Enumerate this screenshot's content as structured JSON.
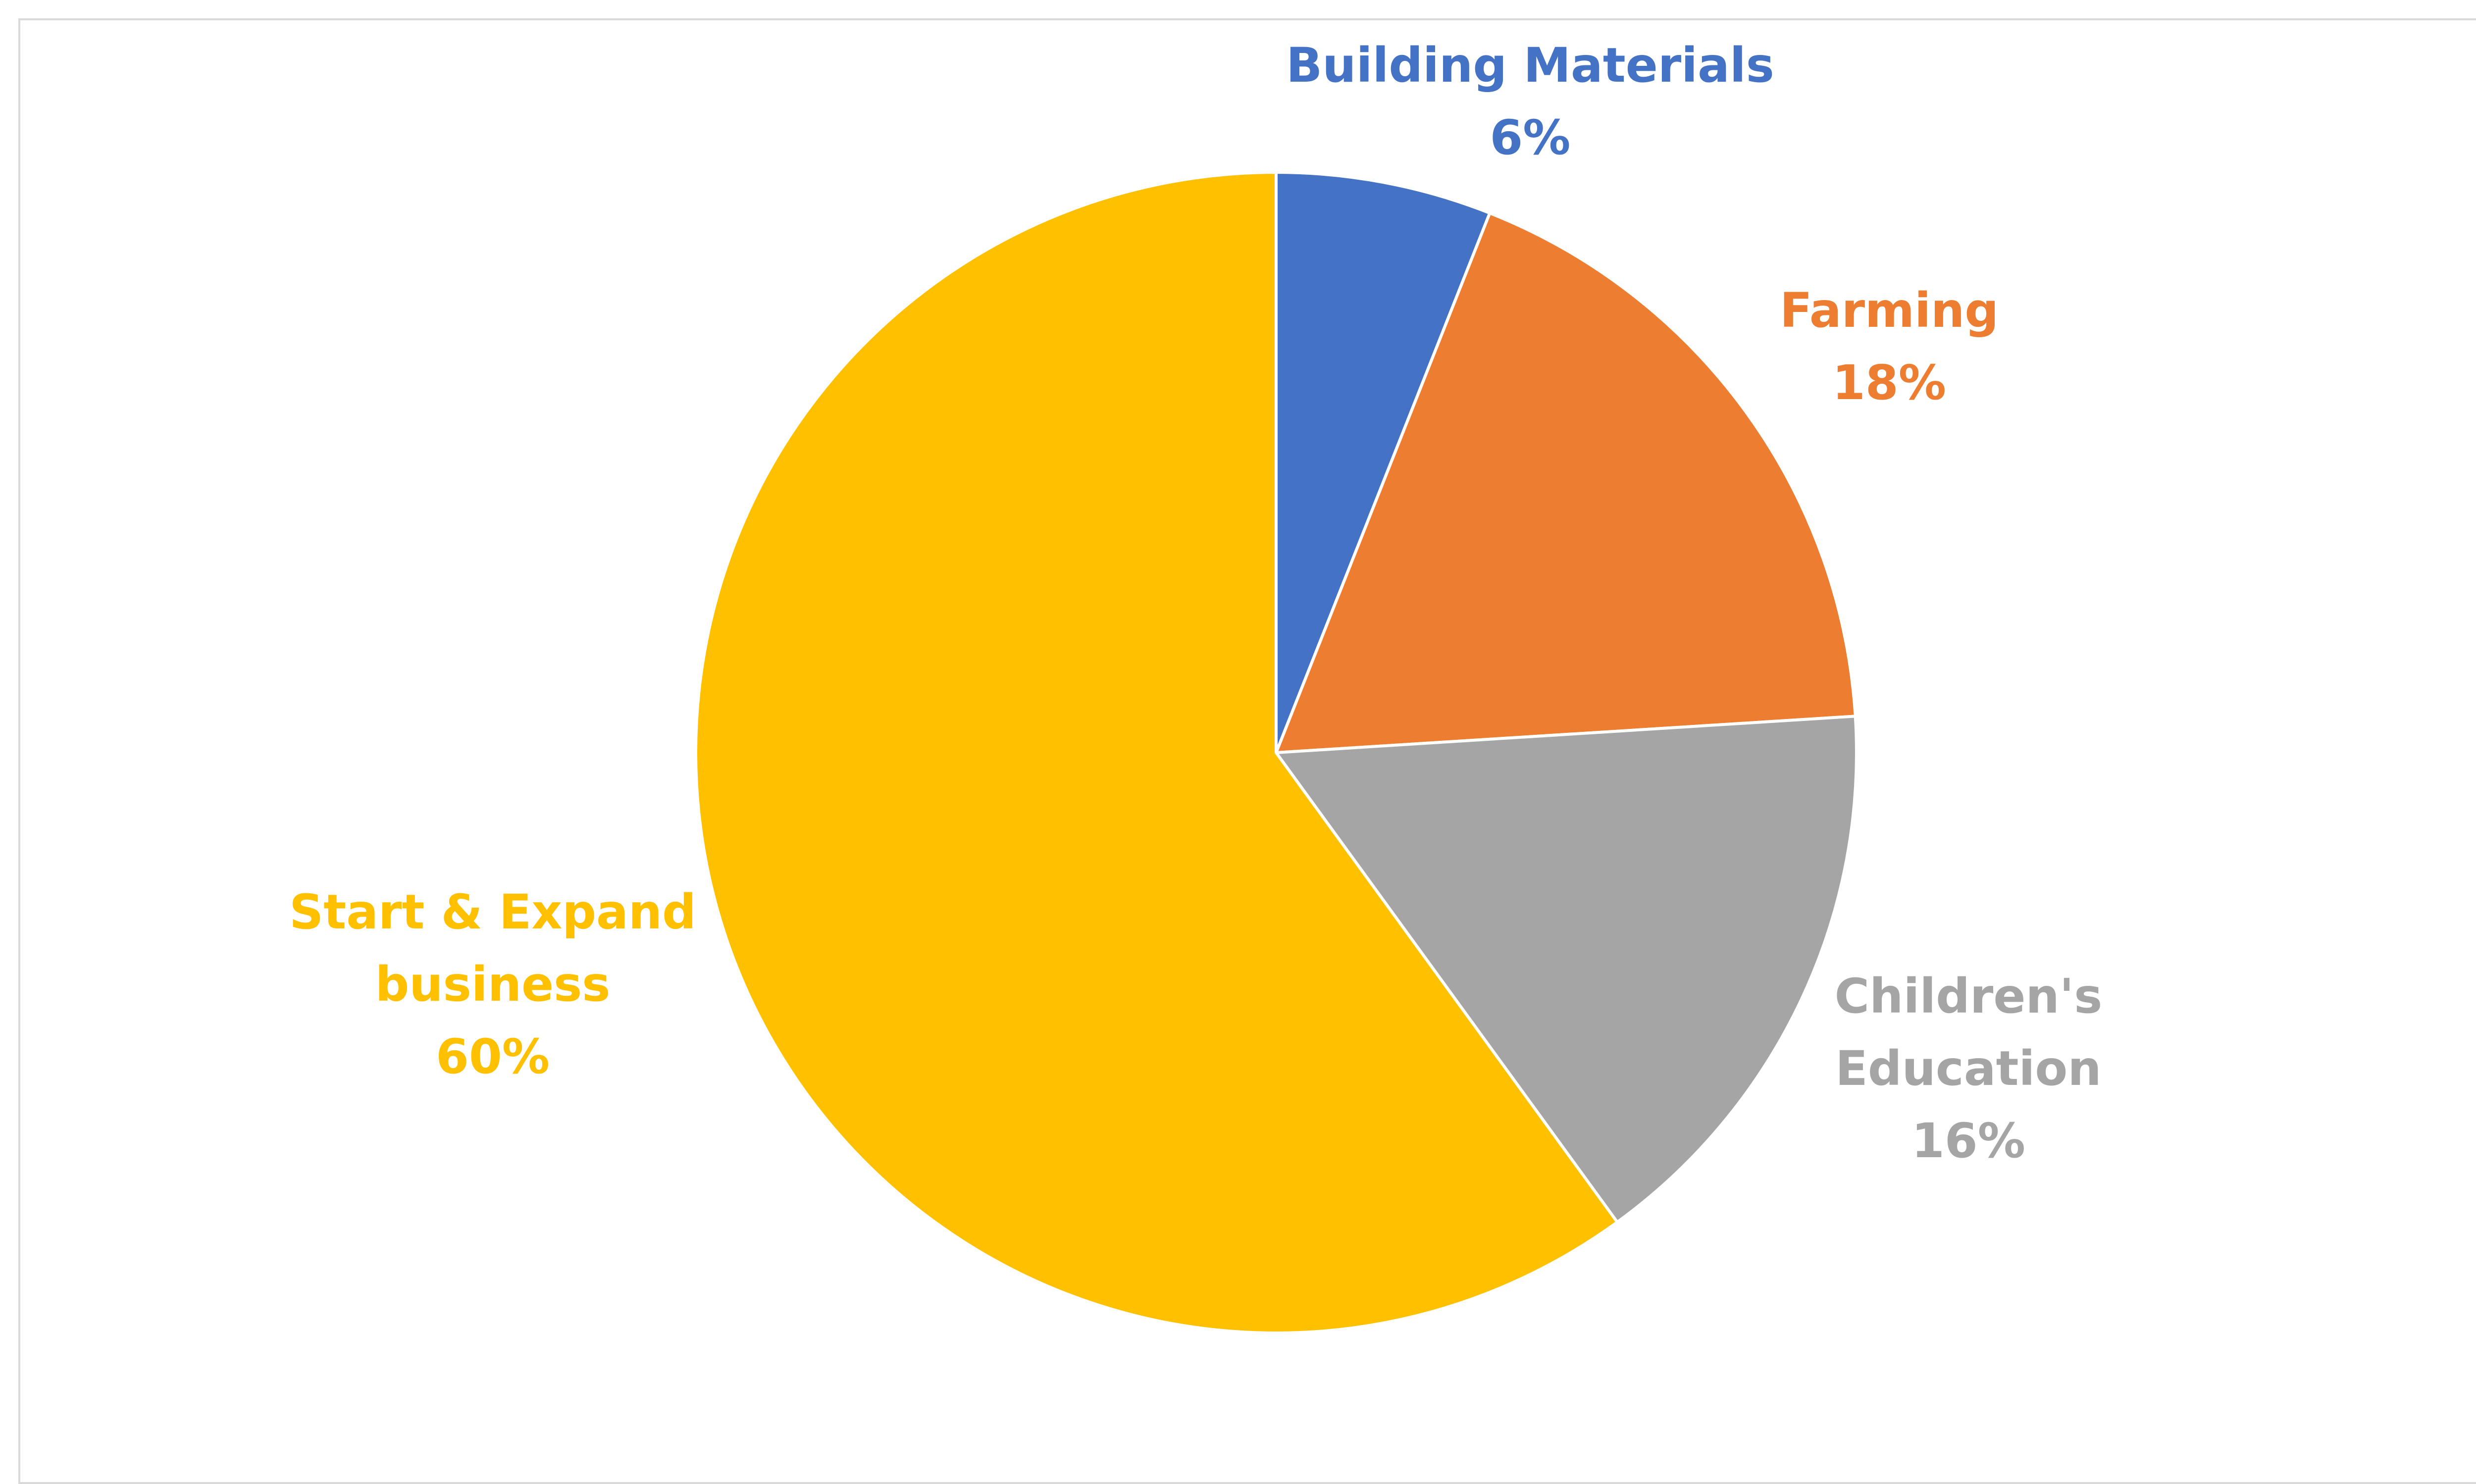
{
  "chart_data": {
    "type": "pie",
    "title": "",
    "start_angle_deg": 0,
    "direction": "clockwise",
    "slices": [
      {
        "label_lines": [
          "Building Materials"
        ],
        "percent_text": "6%",
        "value": 6,
        "color": "#4472c4"
      },
      {
        "label_lines": [
          "Farming"
        ],
        "percent_text": "18%",
        "value": 18,
        "color": "#ed7d31"
      },
      {
        "label_lines": [
          "Children's",
          "Education"
        ],
        "percent_text": "16%",
        "value": 16,
        "color": "#a5a5a5"
      },
      {
        "label_lines": [
          "Start & Expand",
          "business"
        ],
        "percent_text": "60%",
        "value": 60,
        "color": "#ffc000"
      }
    ],
    "legend": "none",
    "data_labels": "outside, category name and percentage"
  }
}
